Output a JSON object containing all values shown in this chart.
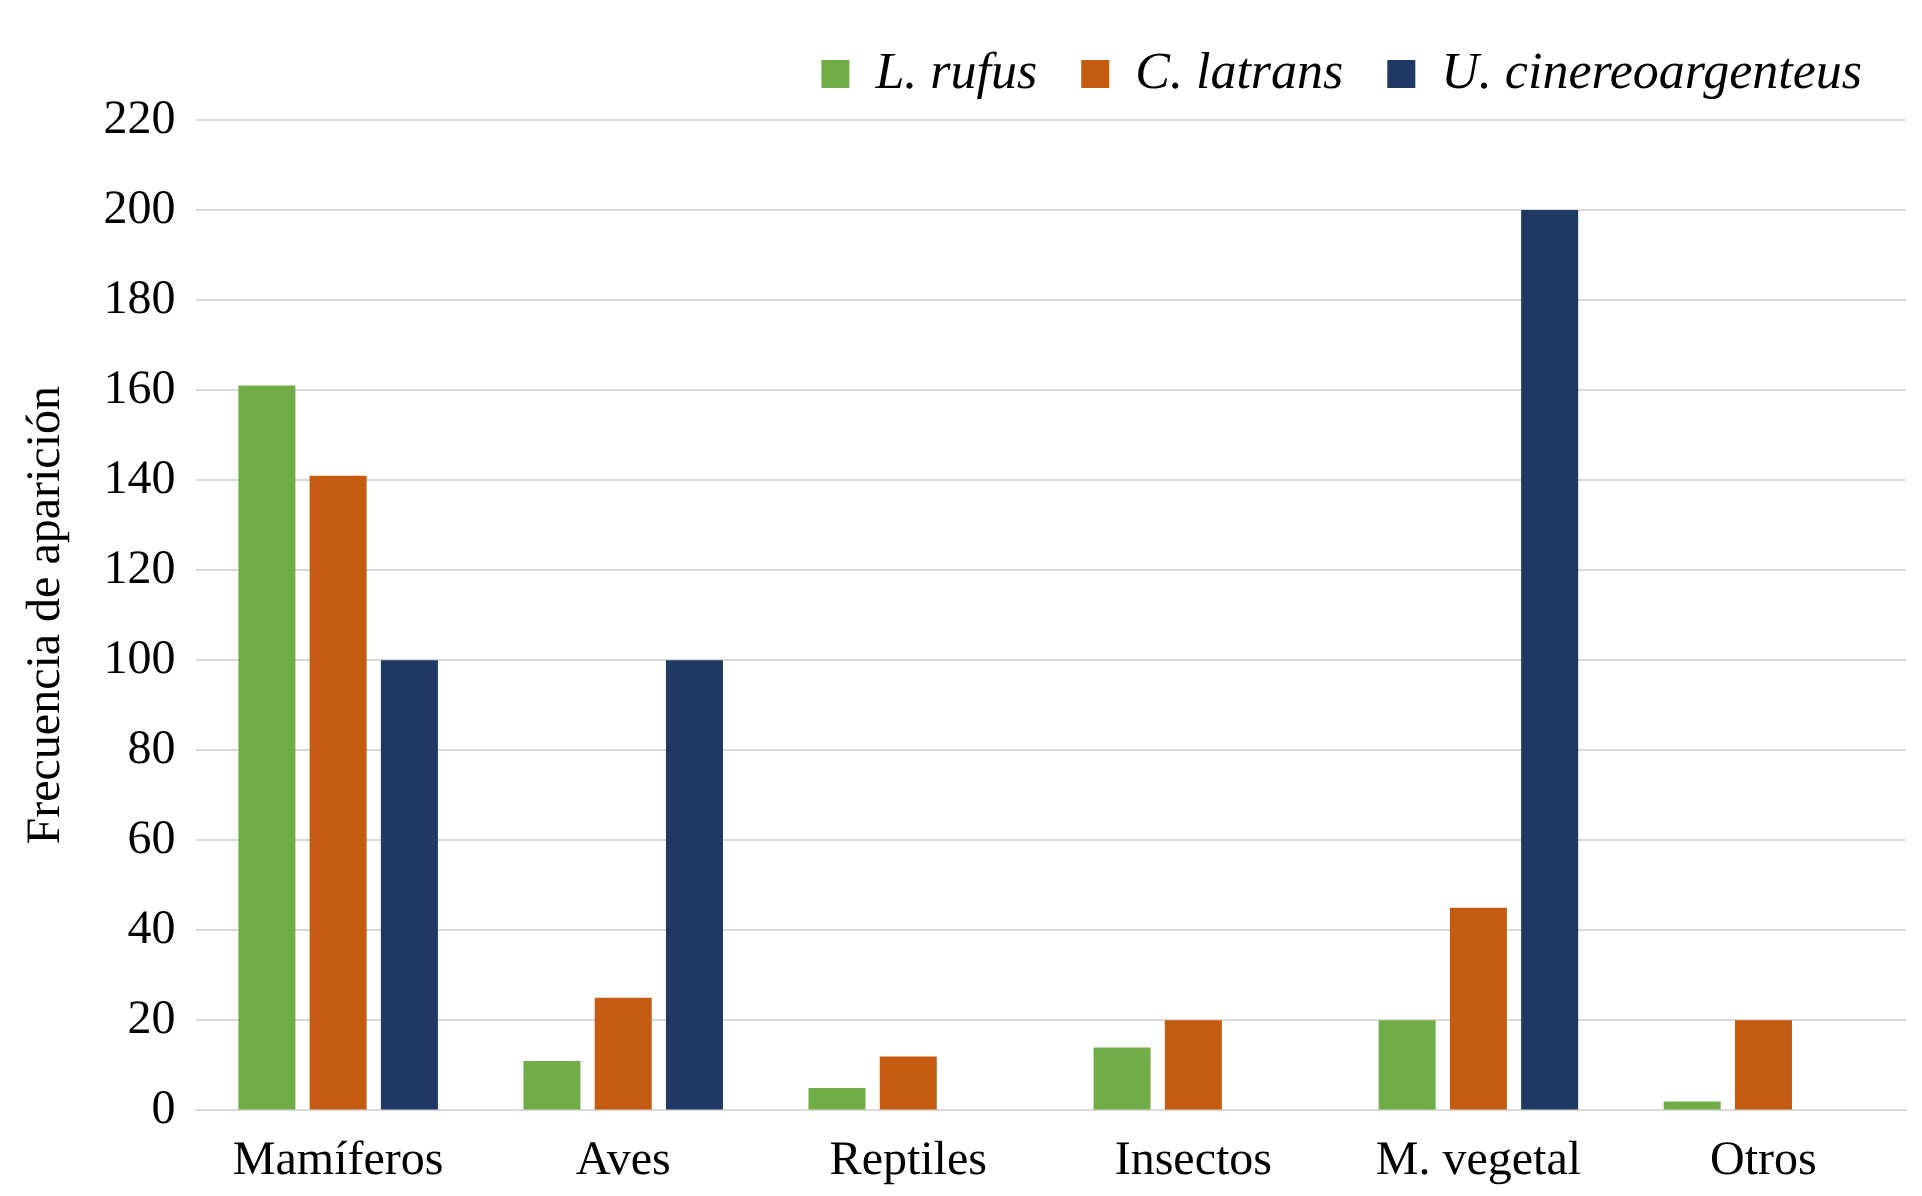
{
  "chart_data": {
    "type": "bar",
    "ylabel": "Frecuencia de aparición",
    "categories": [
      "Mamíferos",
      "Aves",
      "Reptiles",
      "Insectos",
      "M. vegetal",
      "Otros"
    ],
    "series": [
      {
        "name": "L. rufus",
        "color": "#70ad47",
        "values": [
          161,
          11,
          5,
          14,
          20,
          2
        ]
      },
      {
        "name": "C. latrans",
        "color": "#c55a11",
        "values": [
          141,
          25,
          12,
          20,
          45,
          20
        ]
      },
      {
        "name": "U. cinereoargenteus",
        "color": "#203864",
        "values": [
          100,
          100,
          null,
          null,
          200,
          null
        ]
      }
    ],
    "ylim": [
      0,
      220
    ],
    "yticks": [
      0,
      20,
      40,
      60,
      80,
      100,
      120,
      140,
      160,
      180,
      200,
      220
    ],
    "grid": "y",
    "legend": "top right"
  }
}
